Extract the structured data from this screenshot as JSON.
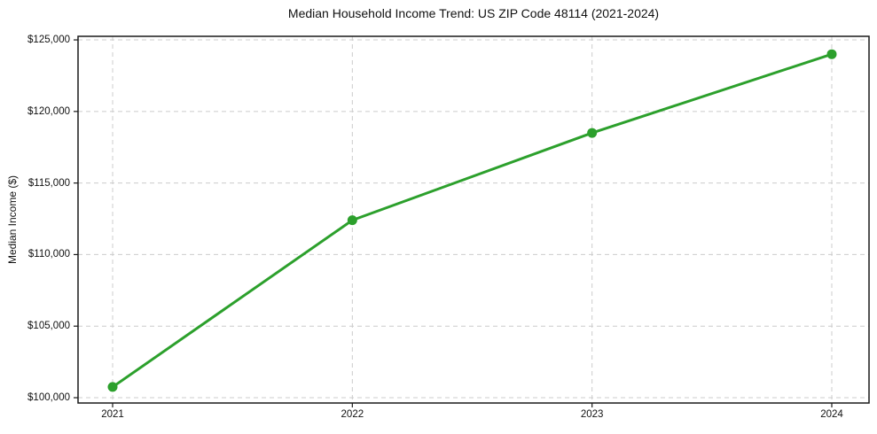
{
  "chart_data": {
    "type": "line",
    "title": "Median Household Income Trend: US ZIP Code 48114 (2021-2024)",
    "xlabel": "",
    "ylabel": "Median Income ($)",
    "categories": [
      "2021",
      "2022",
      "2023",
      "2024"
    ],
    "series": [
      {
        "name": "Median Household Income",
        "values": [
          100750,
          112400,
          118500,
          124000
        ]
      }
    ],
    "ylim": [
      99630,
      125250
    ],
    "yticks": [
      100000,
      105000,
      110000,
      115000,
      120000,
      125000
    ],
    "ytick_labels": [
      "$100,000",
      "$105,000",
      "$110,000",
      "$115,000",
      "$120,000",
      "$125,000"
    ],
    "grid": "dashed-both-axes",
    "legend_position": "none",
    "colors": {
      "line": "#2ca02c",
      "marker": "#2ca02c",
      "grid": "#cccccc",
      "frame": "#1a1a1a",
      "text": "#111111",
      "background": "#ffffff"
    }
  }
}
